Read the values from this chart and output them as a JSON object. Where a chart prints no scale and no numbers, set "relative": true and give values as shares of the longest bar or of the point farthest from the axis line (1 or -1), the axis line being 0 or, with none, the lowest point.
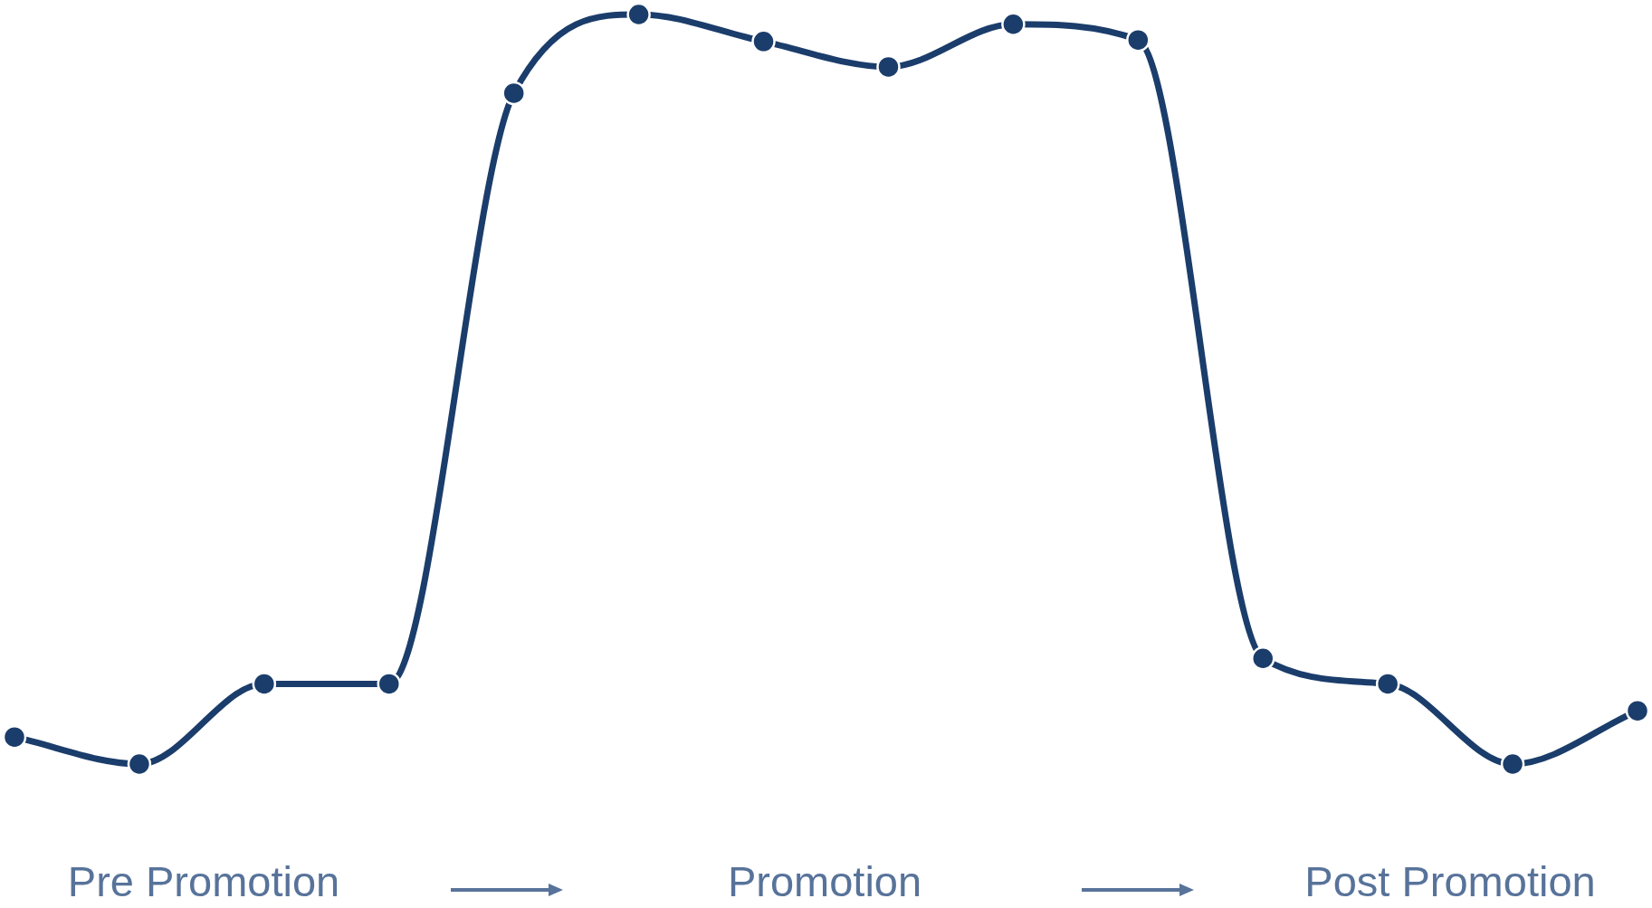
{
  "chart_data": {
    "type": "line",
    "relative": true,
    "categories": [
      null,
      null,
      null,
      null,
      null,
      null,
      null,
      null,
      null,
      null,
      null,
      null,
      null,
      null
    ],
    "series": [
      {
        "color": "#1b3d6b",
        "values": [
          0.036,
          0,
          0.107,
          0.107,
          0.895,
          1,
          0.964,
          0.93,
          0.987,
          0.966,
          0.141,
          0.107,
          0,
          0.071
        ]
      }
    ],
    "marker": "circle",
    "line_style": "solid",
    "legend": false,
    "tick_labels": false,
    "annotations": [
      "Pre Promotion",
      "Promotion",
      "Post Promotion"
    ]
  }
}
